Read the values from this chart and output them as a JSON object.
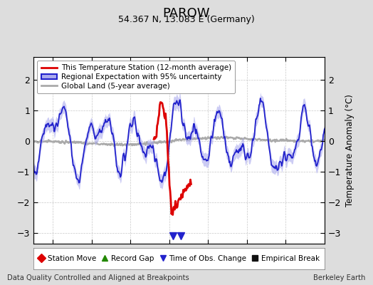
{
  "title": "PAROW",
  "subtitle": "54.367 N, 13.083 E (Germany)",
  "xlabel_bottom": "Data Quality Controlled and Aligned at Breakpoints",
  "xlabel_right": "Berkeley Earth",
  "ylabel": "Temperature Anomaly (°C)",
  "xlim": [
    1922.5,
    1960.0
  ],
  "ylim": [
    -3.35,
    2.75
  ],
  "yticks": [
    -3,
    -2,
    -1,
    0,
    1,
    2
  ],
  "xticks": [
    1925,
    1930,
    1935,
    1940,
    1945,
    1950,
    1955
  ],
  "bg_color": "#dddddd",
  "plot_bg_color": "#ffffff",
  "grid_color": "#bbbbbb",
  "regional_color": "#2222cc",
  "regional_fill_color": "#aaaaee",
  "station_color": "#dd0000",
  "global_color": "#aaaaaa",
  "seed": 42
}
